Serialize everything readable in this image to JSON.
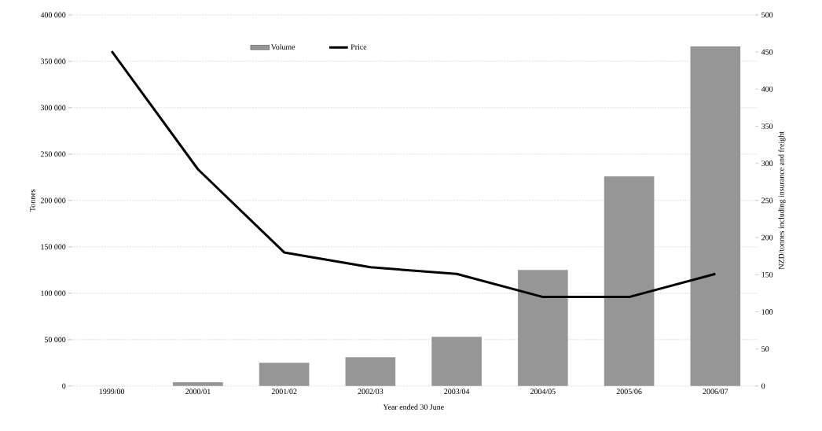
{
  "chart_data": {
    "type": "bar",
    "xlabel": "Year ended 30 June",
    "ylabel": "Tonnes",
    "y2label": "NZD/tonnes including insurance and freight",
    "categories": [
      "1999/00",
      "2000/01",
      "2001/02",
      "2002/03",
      "2003/04",
      "2004/05",
      "2005/06",
      "2006/07"
    ],
    "series": [
      {
        "name": "Volume",
        "color": "#969696",
        "values": [
          0,
          4000,
          25000,
          31000,
          53000,
          125000,
          226000,
          366000
        ]
      },
      {
        "name": "Price",
        "type": "line",
        "axis": "y2",
        "color": "#000000",
        "values": [
          451,
          292,
          180,
          160,
          151,
          120,
          120,
          151
        ]
      }
    ],
    "ylim": [
      0,
      400000
    ],
    "yticks": [
      0,
      {
        "value": 50000,
        "label": "50 000"
      },
      {
        "value": 100000,
        "label": "100 000"
      },
      {
        "value": 150000,
        "label": "150 000"
      },
      {
        "value": 200000,
        "label": "200 000"
      },
      {
        "value": 250000,
        "label": "250 000"
      },
      {
        "value": 300000,
        "label": "300 000"
      },
      {
        "value": 350000,
        "label": "350 000"
      },
      {
        "value": 400000,
        "label": "400 000"
      }
    ],
    "y2lim": [
      0,
      500
    ],
    "y2ticks": [
      0,
      50,
      100,
      150,
      200,
      250,
      300,
      350,
      400,
      450,
      500
    ],
    "grid": "y",
    "legend": "top",
    "line_style": "solid",
    "marker": "none"
  }
}
